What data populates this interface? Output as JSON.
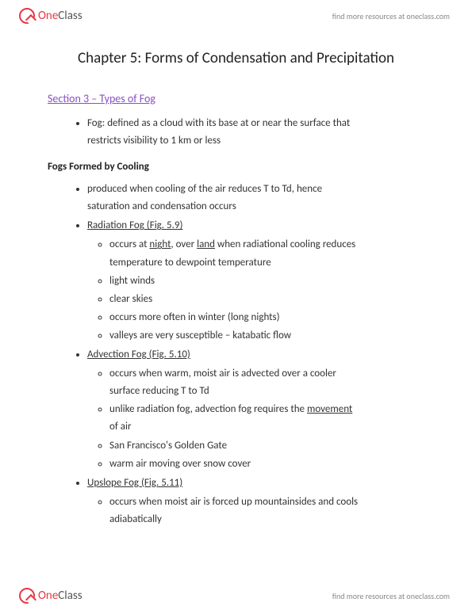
{
  "brand": {
    "one": "One",
    "class": "Class",
    "tagline": "find more resources at oneclass.com"
  },
  "chapter_title": "Chapter 5: Forms of Condensation and Precipitation",
  "section_title": "Section 3 – Types of Fog",
  "fog_def_lead": "Fog:  defined as a cloud with its base at or near the surface that",
  "fog_def_cont": "restricts visibility to 1 km or less",
  "subheading": "Fogs Formed by Cooling",
  "cooling_intro_1": "produced when cooling of the air reduces T to Td, hence",
  "cooling_intro_2": "saturation and condensation occurs",
  "radiation": {
    "title": "Radiation Fog (Fig. 5.9)",
    "l1a": "occurs at ",
    "l1_night": "night",
    "l1b": ", over ",
    "l1_land": "land",
    "l1c": " when radiational cooling reduces",
    "l1d": "temperature to dewpoint temperature",
    "l2": "light winds",
    "l3": "clear skies",
    "l4": "occurs more often in winter (long nights)",
    "l5": "valleys are very susceptible – katabatic flow"
  },
  "advection": {
    "title": "Advection Fog (Fig. 5.10)",
    "l1a": "occurs when warm, moist air is advected over a cooler",
    "l1b": "surface reducing T to Td",
    "l2a": "unlike radiation fog, advection fog requires the ",
    "l2_movement": "movement",
    "l2b": "of air",
    "l3": "San Francisco's Golden Gate",
    "l4": "warm air moving over snow cover"
  },
  "upslope": {
    "title": "Upslope Fog (Fig. 5.11)",
    "l1a": "occurs when moist air is forced up mountainsides and cools",
    "l1b": "adiabatically"
  },
  "colors": {
    "link": "#8a4fc2",
    "accent": "#e63946",
    "text": "#333333"
  }
}
